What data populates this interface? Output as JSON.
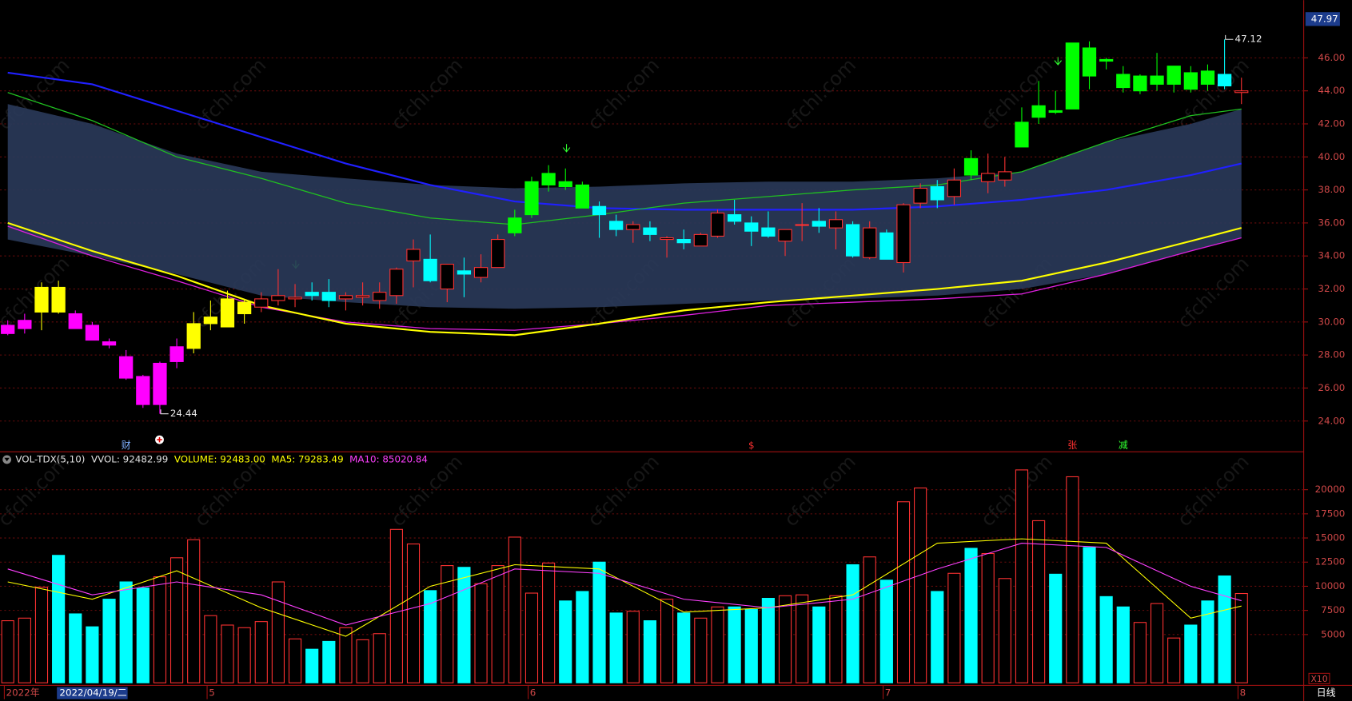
{
  "chart_data": [
    {
      "type": "candlestick",
      "open": [
        29.3,
        29.6,
        30.6,
        32.1,
        30.5,
        29.8,
        28.8,
        27.9,
        26.7,
        25.0,
        27.6,
        28.4,
        29.9,
        29.7,
        30.5,
        30.9,
        31.3,
        31.4,
        31.8,
        31.8,
        31.4,
        31.5,
        31.3,
        31.6,
        33.7,
        33.8,
        32.0,
        33.1,
        32.7,
        33.3,
        35.4,
        36.5,
        38.3,
        38.5,
        38.3,
        37.0,
        36.1,
        35.6,
        35.7,
        35.0,
        35.0,
        34.6,
        35.2,
        36.5,
        36.0,
        35.7,
        34.9,
        35.85,
        36.1,
        35.7,
        35.9,
        33.9,
        35.4,
        33.6,
        37.2,
        38.2,
        37.6,
        39.9,
        38.5,
        38.6,
        40.6,
        42.4,
        42.8,
        42.9,
        46.6,
        45.9,
        45.0,
        44.0,
        44.4,
        44.4,
        45.1,
        45.2,
        45.0,
        43.9
      ],
      "high": [
        30.1,
        30.5,
        32.4,
        32.5,
        30.7,
        30.0,
        29.0,
        28.3,
        26.8,
        27.6,
        29.0,
        30.6,
        31.3,
        31.9,
        31.4,
        31.8,
        33.2,
        32.3,
        32.4,
        32.6,
        31.8,
        32.4,
        32.4,
        33.3,
        35.0,
        35.3,
        33.5,
        33.9,
        34.1,
        35.3,
        36.8,
        38.8,
        39.5,
        39.3,
        38.5,
        37.3,
        36.5,
        36.1,
        36.1,
        35.2,
        35.6,
        35.4,
        36.8,
        37.4,
        36.4,
        36.7,
        35.6,
        37.2,
        36.9,
        36.7,
        36.1,
        36.1,
        35.6,
        37.2,
        38.4,
        38.6,
        39.3,
        40.4,
        40.2,
        40.0,
        43.0,
        44.6,
        44.0,
        46.9,
        47.0,
        46.0,
        45.5,
        45.0,
        46.3,
        45.5,
        45.5,
        45.6,
        47.12,
        44.8
      ],
      "low": [
        29.2,
        29.3,
        29.5,
        30.5,
        29.6,
        28.9,
        28.4,
        26.5,
        24.8,
        24.44,
        27.2,
        28.1,
        29.5,
        29.7,
        29.9,
        30.6,
        31.0,
        30.9,
        31.3,
        30.9,
        30.7,
        31.0,
        30.8,
        31.1,
        32.1,
        32.4,
        31.2,
        31.5,
        32.4,
        33.3,
        35.2,
        36.3,
        37.9,
        38.0,
        36.9,
        35.1,
        35.2,
        34.8,
        34.9,
        33.9,
        34.4,
        34.6,
        35.1,
        35.9,
        34.6,
        35.1,
        34.0,
        34.9,
        35.4,
        34.4,
        33.9,
        33.8,
        33.8,
        33.0,
        36.9,
        36.9,
        37.1,
        38.6,
        37.8,
        38.2,
        40.6,
        42.0,
        42.6,
        42.9,
        44.1,
        45.3,
        43.9,
        43.8,
        44.0,
        43.9,
        43.9,
        44.0,
        44.1,
        43.2
      ],
      "close": [
        29.8,
        30.1,
        32.1,
        30.6,
        29.6,
        28.9,
        28.6,
        26.6,
        25.0,
        27.5,
        28.5,
        29.9,
        30.3,
        31.4,
        31.2,
        31.4,
        31.6,
        31.5,
        31.6,
        31.3,
        31.6,
        31.6,
        31.8,
        33.2,
        34.4,
        32.5,
        33.5,
        32.9,
        33.3,
        35.0,
        36.3,
        38.5,
        39.0,
        38.2,
        36.9,
        36.5,
        35.6,
        35.9,
        35.3,
        35.1,
        34.8,
        35.3,
        36.6,
        36.1,
        35.5,
        35.2,
        35.6,
        35.9,
        35.8,
        36.2,
        34.0,
        35.7,
        33.8,
        37.1,
        38.1,
        37.4,
        38.6,
        38.9,
        39.0,
        39.1,
        42.1,
        43.1,
        42.7,
        46.9,
        44.9,
        45.8,
        44.2,
        44.9,
        44.9,
        45.5,
        44.1,
        44.4,
        44.3,
        44.0
      ],
      "colors": [
        "#ff00ff",
        "#ff00ff",
        "#ffff00",
        "#ffff00",
        "#ff00ff",
        "#ff00ff",
        "#ff00ff",
        "#ff00ff",
        "#ff00ff",
        "#ff00ff",
        "#ff00ff",
        "#ffff00",
        "#ffff00",
        "#ffff00",
        "#ffff00",
        "#ff3232",
        "#ff3232",
        "#ff3232",
        "#00ffff",
        "#00ffff",
        "#ff3232",
        "#ff3232",
        "#ff3232",
        "#ff3232",
        "#ff3232",
        "#00ffff",
        "#ff3232",
        "#00ffff",
        "#ff3232",
        "#ff3232",
        "#00ff00",
        "#00ff00",
        "#00ff00",
        "#00ff00",
        "#00ff00",
        "#00ffff",
        "#00ffff",
        "#ff3232",
        "#00ffff",
        "#ff3232",
        "#00ffff",
        "#ff3232",
        "#ff3232",
        "#00ffff",
        "#00ffff",
        "#00ffff",
        "#ff3232",
        "#ff3232",
        "#00ffff",
        "#ff3232",
        "#00ffff",
        "#ff3232",
        "#00ffff",
        "#ff3232",
        "#ff3232",
        "#00ffff",
        "#ff3232",
        "#00ff00",
        "#ff3232",
        "#ff3232",
        "#00ff00",
        "#00ff00",
        "#00ff00",
        "#00ff00",
        "#00ff00",
        "#00ff00",
        "#00ff00",
        "#00ff00",
        "#00ff00",
        "#00ff00",
        "#00ff00",
        "#00ff00",
        "#00ffff",
        "#ff3232"
      ],
      "hollow_color": "#ff3232",
      "ylim": [
        22.19,
        48.82
      ],
      "yticks": [
        {
          "value": 24,
          "label": "24.00"
        },
        {
          "value": 26,
          "label": "26.00"
        },
        {
          "value": 28,
          "label": "28.00"
        },
        {
          "value": 30,
          "label": "30.00"
        },
        {
          "value": 32,
          "label": "32.00"
        },
        {
          "value": 34,
          "label": "34.00"
        },
        {
          "value": 36,
          "label": "36.00"
        },
        {
          "value": 38,
          "label": "38.00"
        },
        {
          "value": 40,
          "label": "40.00"
        },
        {
          "value": 42,
          "label": "42.00"
        },
        {
          "value": 44,
          "label": "44.00"
        },
        {
          "value": 46,
          "label": "46.00"
        }
      ],
      "grid": true,
      "top_label": "47.97",
      "band": {
        "color": "#2a3a5a",
        "x": [
          0,
          5,
          10,
          15,
          20,
          25,
          30,
          35,
          40,
          45,
          50,
          55,
          60,
          65,
          70,
          73
        ],
        "upper": [
          43.2,
          42.0,
          40.2,
          39.1,
          38.7,
          38.3,
          38.1,
          38.2,
          38.4,
          38.5,
          38.5,
          38.7,
          39.1,
          40.9,
          42.0,
          42.9
        ],
        "lower": [
          35.0,
          34.0,
          32.9,
          31.6,
          31.2,
          30.9,
          30.8,
          30.9,
          31.1,
          31.3,
          31.4,
          31.6,
          32.0,
          32.9,
          34.3,
          35.1
        ]
      },
      "lines": [
        {
          "color": "#2020ff",
          "x": [
            0,
            5,
            10,
            15,
            20,
            25,
            30,
            35,
            40,
            45,
            50,
            55,
            60,
            65,
            70,
            73
          ],
          "values": [
            45.1,
            44.4,
            42.8,
            41.2,
            39.6,
            38.3,
            37.3,
            36.9,
            36.8,
            36.8,
            36.8,
            37.0,
            37.4,
            38.0,
            38.9,
            39.6
          ]
        },
        {
          "color": "#20c020",
          "x": [
            0,
            5,
            10,
            15,
            20,
            25,
            30,
            35,
            40,
            45,
            50,
            55,
            60,
            65,
            70,
            73
          ],
          "values": [
            43.9,
            42.2,
            40.0,
            38.7,
            37.2,
            36.3,
            35.9,
            36.5,
            37.2,
            37.6,
            38.0,
            38.3,
            39.1,
            40.9,
            42.5,
            42.9
          ]
        },
        {
          "color": "#e020e0",
          "x": [
            0,
            5,
            10,
            15,
            20,
            25,
            30,
            35,
            40,
            45,
            50,
            55,
            60,
            65,
            70,
            73
          ],
          "values": [
            35.8,
            34.0,
            32.5,
            30.9,
            30.0,
            29.6,
            29.5,
            29.9,
            30.4,
            31.0,
            31.2,
            31.4,
            31.7,
            32.9,
            34.3,
            35.1
          ]
        },
        {
          "color": "#ffff00",
          "x": [
            0,
            5,
            10,
            15,
            20,
            25,
            30,
            35,
            40,
            45,
            50,
            55,
            60,
            65,
            70,
            73
          ],
          "values": [
            36.0,
            34.3,
            32.8,
            31.0,
            29.9,
            29.4,
            29.2,
            29.9,
            30.7,
            31.2,
            31.6,
            32.0,
            32.5,
            33.6,
            34.9,
            35.7
          ]
        }
      ],
      "annotations": [
        {
          "x": 9,
          "value": 24.44,
          "label": "24.44"
        },
        {
          "x": 72,
          "value": 47.12,
          "label": "47.12"
        }
      ],
      "event_markers": [
        {
          "x": 7,
          "label": "财",
          "color": "#7fb0ff"
        },
        {
          "x": 44,
          "label": "$",
          "color": "#ff3030"
        },
        {
          "x": 63,
          "label": "张",
          "color": "#ff3030"
        },
        {
          "x": 66,
          "label": "减",
          "color": "#30ff30"
        }
      ],
      "watermark": "cfchi.com"
    },
    {
      "type": "bar",
      "header": [
        {
          "text": "VOL-TDX(5,10)",
          "color": "#e0e0e0"
        },
        {
          "text": "VVOL: 92482.99",
          "color": "#e0e0e0"
        },
        {
          "text": "VOLUME: 92483.00",
          "color": "#ffff00"
        },
        {
          "text": "MA5: 79283.49",
          "color": "#ffff00"
        },
        {
          "text": "MA10: 85020.84",
          "color": "#ff40ff"
        }
      ],
      "values": [
        6430,
        6700,
        9900,
        13200,
        7140,
        5800,
        8660,
        10450,
        9820,
        10980,
        12950,
        14820,
        6960,
        5980,
        5710,
        6340,
        10450,
        4550,
        3480,
        4290,
        5710,
        4460,
        5090,
        15890,
        14380,
        9550,
        12140,
        11960,
        10270,
        12140,
        15090,
        9290,
        12410,
        8480,
        9460,
        12500,
        7230,
        7410,
        6430,
        8660,
        7230,
        6700,
        7860,
        7860,
        7590,
        8750,
        9020,
        9110,
        7860,
        9020,
        12230,
        13040,
        10630,
        18750,
        20180,
        9460,
        11340,
        13930,
        13390,
        10800,
        22050,
        16790,
        11250,
        21340,
        14020,
        8930,
        7860,
        6250,
        8210,
        4640,
        5980,
        8480,
        11070,
        9248
      ],
      "up_color": "#ff3232",
      "down_color": "#00ffff",
      "ylim": [
        0,
        23570
      ],
      "yticks": [
        5000,
        7500,
        10000,
        12500,
        15000,
        17500,
        20000
      ],
      "lines": [
        {
          "color": "#ffff00",
          "x": [
            0,
            5,
            10,
            15,
            20,
            25,
            30,
            35,
            40,
            45,
            50,
            55,
            60,
            65,
            70,
            73
          ],
          "values": [
            10450,
            8660,
            11600,
            7770,
            4820,
            10000,
            12230,
            11790,
            7320,
            7770,
            9110,
            14460,
            14910,
            14460,
            6700,
            7950
          ]
        },
        {
          "color": "#ff40ff",
          "x": [
            0,
            5,
            10,
            15,
            20,
            25,
            30,
            35,
            40,
            45,
            50,
            55,
            60,
            65,
            70,
            73
          ],
          "values": [
            11790,
            9110,
            10450,
            9110,
            5980,
            8210,
            11790,
            11340,
            8660,
            7770,
            8660,
            11790,
            14460,
            14020,
            10000,
            8500
          ]
        }
      ],
      "unit_label": "X10",
      "xticks": [
        {
          "value": 0,
          "label": "2022年"
        },
        {
          "value": 12,
          "label": "5"
        },
        {
          "value": 31,
          "label": "6"
        },
        {
          "value": 52,
          "label": "7"
        },
        {
          "value": 73,
          "label": "8"
        }
      ],
      "cursor_label": "2022/04/19/二",
      "period_label": "日线"
    }
  ]
}
